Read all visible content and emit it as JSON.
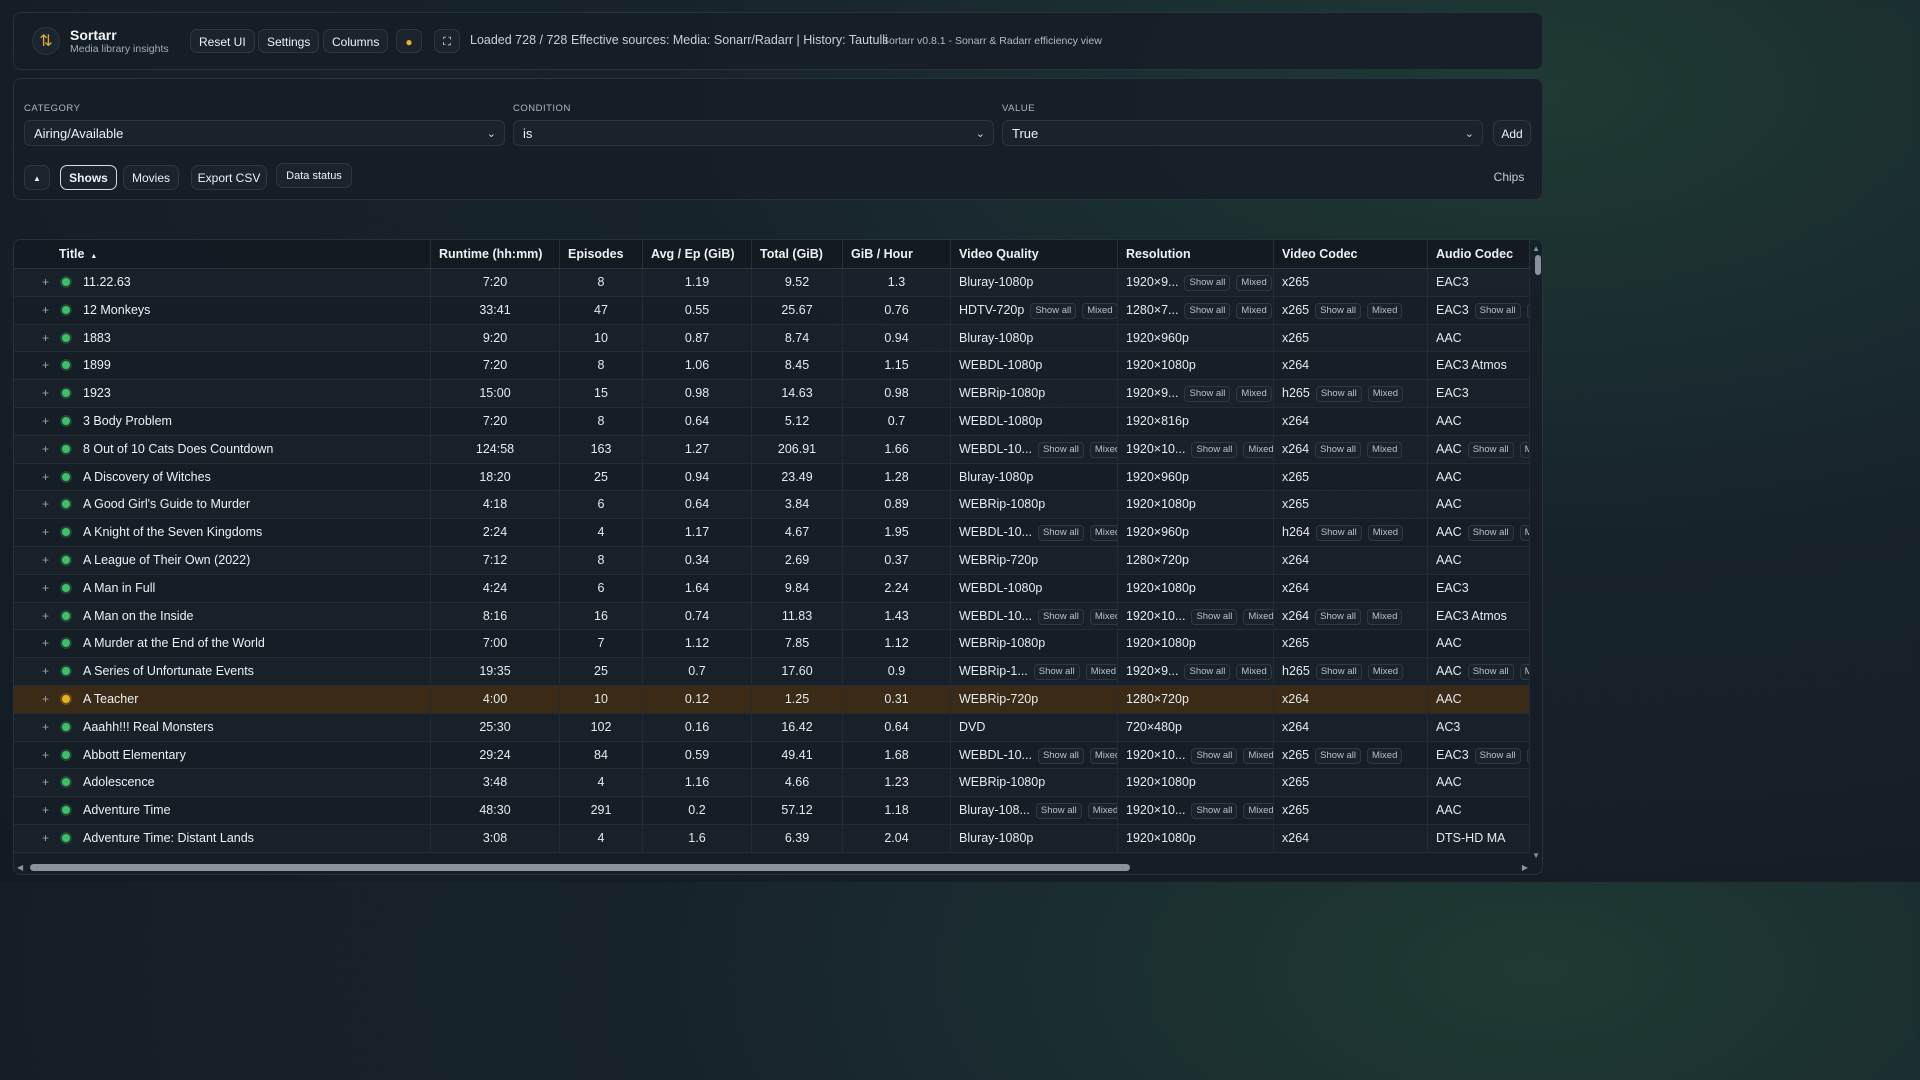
{
  "app": {
    "name": "Sortarr",
    "subtitle": "Media library insights"
  },
  "toolbar": {
    "reset": "Reset UI",
    "settings": "Settings",
    "columns": "Columns",
    "loaded": "Loaded 728 / 728",
    "sources": "Effective sources: Media: Sonarr/Radarr | History: Tautulli",
    "version": "Sortarr v0.8.1 - Sonarr & Radarr efficiency view"
  },
  "filters": {
    "category_label": "CATEGORY",
    "category_value": "Airing/Available",
    "condition_label": "CONDITION",
    "condition_value": "is",
    "value_label": "VALUE",
    "value_value": "True",
    "add": "Add",
    "collapse": "▲",
    "shows": "Shows",
    "movies": "Movies",
    "export": "Export CSV",
    "data_status": "Data status",
    "chips": "Chips"
  },
  "columns": [
    "Title",
    "Runtime (hh:mm)",
    "Episodes",
    "Avg / Ep (GiB)",
    "Total (GiB)",
    "GiB / Hour",
    "Video Quality",
    "Resolution",
    "Video Codec",
    "Audio Codec"
  ],
  "sort_indicator": "▲",
  "tag_labels": {
    "show_all": "Show all",
    "mixed": "Mixed"
  },
  "rows": [
    {
      "title": "11.22.63",
      "runtime": "7:20",
      "episodes": "8",
      "avg": "1.19",
      "total": "9.52",
      "gph": "1.3",
      "vq": "Bluray-1080p",
      "vq_tags": false,
      "res": "1920×9...",
      "res_tags": true,
      "vc": "x265",
      "vc_tags": false,
      "ac": "EAC3",
      "ac_tags": false,
      "status": "green"
    },
    {
      "title": "12 Monkeys",
      "runtime": "33:41",
      "episodes": "47",
      "avg": "0.55",
      "total": "25.67",
      "gph": "0.76",
      "vq": "HDTV-720p",
      "vq_tags": true,
      "res": "1280×7...",
      "res_tags": true,
      "vc": "x265",
      "vc_tags": true,
      "ac": "EAC3",
      "ac_tags": true,
      "status": "green"
    },
    {
      "title": "1883",
      "runtime": "9:20",
      "episodes": "10",
      "avg": "0.87",
      "total": "8.74",
      "gph": "0.94",
      "vq": "Bluray-1080p",
      "vq_tags": false,
      "res": "1920×960p",
      "res_tags": false,
      "vc": "x265",
      "vc_tags": false,
      "ac": "AAC",
      "ac_tags": false,
      "status": "green"
    },
    {
      "title": "1899",
      "runtime": "7:20",
      "episodes": "8",
      "avg": "1.06",
      "total": "8.45",
      "gph": "1.15",
      "vq": "WEBDL-1080p",
      "vq_tags": false,
      "res": "1920×1080p",
      "res_tags": false,
      "vc": "x264",
      "vc_tags": false,
      "ac": "EAC3 Atmos",
      "ac_tags": false,
      "status": "green"
    },
    {
      "title": "1923",
      "runtime": "15:00",
      "episodes": "15",
      "avg": "0.98",
      "total": "14.63",
      "gph": "0.98",
      "vq": "WEBRip-1080p",
      "vq_tags": false,
      "res": "1920×9...",
      "res_tags": true,
      "vc": "h265",
      "vc_tags": true,
      "ac": "EAC3",
      "ac_tags": false,
      "status": "green"
    },
    {
      "title": "3 Body Problem",
      "runtime": "7:20",
      "episodes": "8",
      "avg": "0.64",
      "total": "5.12",
      "gph": "0.7",
      "vq": "WEBDL-1080p",
      "vq_tags": false,
      "res": "1920×816p",
      "res_tags": false,
      "vc": "x264",
      "vc_tags": false,
      "ac": "AAC",
      "ac_tags": false,
      "status": "green"
    },
    {
      "title": "8 Out of 10 Cats Does Countdown",
      "runtime": "124:58",
      "episodes": "163",
      "avg": "1.27",
      "total": "206.91",
      "gph": "1.66",
      "vq": "WEBDL-10...",
      "vq_tags": true,
      "res": "1920×10...",
      "res_tags": true,
      "vc": "x264",
      "vc_tags": true,
      "ac": "AAC",
      "ac_tags": true,
      "status": "green"
    },
    {
      "title": "A Discovery of Witches",
      "runtime": "18:20",
      "episodes": "25",
      "avg": "0.94",
      "total": "23.49",
      "gph": "1.28",
      "vq": "Bluray-1080p",
      "vq_tags": false,
      "res": "1920×960p",
      "res_tags": false,
      "vc": "x265",
      "vc_tags": false,
      "ac": "AAC",
      "ac_tags": false,
      "status": "green"
    },
    {
      "title": "A Good Girl's Guide to Murder",
      "runtime": "4:18",
      "episodes": "6",
      "avg": "0.64",
      "total": "3.84",
      "gph": "0.89",
      "vq": "WEBRip-1080p",
      "vq_tags": false,
      "res": "1920×1080p",
      "res_tags": false,
      "vc": "x265",
      "vc_tags": false,
      "ac": "AAC",
      "ac_tags": false,
      "status": "green"
    },
    {
      "title": "A Knight of the Seven Kingdoms",
      "runtime": "2:24",
      "episodes": "4",
      "avg": "1.17",
      "total": "4.67",
      "gph": "1.95",
      "vq": "WEBDL-10...",
      "vq_tags": true,
      "res": "1920×960p",
      "res_tags": false,
      "vc": "h264",
      "vc_tags": true,
      "ac": "AAC",
      "ac_tags": true,
      "status": "green"
    },
    {
      "title": "A League of Their Own (2022)",
      "runtime": "7:12",
      "episodes": "8",
      "avg": "0.34",
      "total": "2.69",
      "gph": "0.37",
      "vq": "WEBRip-720p",
      "vq_tags": false,
      "res": "1280×720p",
      "res_tags": false,
      "vc": "x264",
      "vc_tags": false,
      "ac": "AAC",
      "ac_tags": false,
      "status": "green"
    },
    {
      "title": "A Man in Full",
      "runtime": "4:24",
      "episodes": "6",
      "avg": "1.64",
      "total": "9.84",
      "gph": "2.24",
      "vq": "WEBDL-1080p",
      "vq_tags": false,
      "res": "1920×1080p",
      "res_tags": false,
      "vc": "x264",
      "vc_tags": false,
      "ac": "EAC3",
      "ac_tags": false,
      "status": "green"
    },
    {
      "title": "A Man on the Inside",
      "runtime": "8:16",
      "episodes": "16",
      "avg": "0.74",
      "total": "11.83",
      "gph": "1.43",
      "vq": "WEBDL-10...",
      "vq_tags": true,
      "res": "1920×10...",
      "res_tags": true,
      "vc": "x264",
      "vc_tags": true,
      "ac": "EAC3 Atmos",
      "ac_tags": false,
      "status": "green"
    },
    {
      "title": "A Murder at the End of the World",
      "runtime": "7:00",
      "episodes": "7",
      "avg": "1.12",
      "total": "7.85",
      "gph": "1.12",
      "vq": "WEBRip-1080p",
      "vq_tags": false,
      "res": "1920×1080p",
      "res_tags": false,
      "vc": "x265",
      "vc_tags": false,
      "ac": "AAC",
      "ac_tags": false,
      "status": "green"
    },
    {
      "title": "A Series of Unfortunate Events",
      "runtime": "19:35",
      "episodes": "25",
      "avg": "0.7",
      "total": "17.60",
      "gph": "0.9",
      "vq": "WEBRip-1...",
      "vq_tags": true,
      "res": "1920×9...",
      "res_tags": true,
      "vc": "h265",
      "vc_tags": true,
      "ac": "AAC",
      "ac_tags": true,
      "status": "green"
    },
    {
      "title": "A Teacher",
      "runtime": "4:00",
      "episodes": "10",
      "avg": "0.12",
      "total": "1.25",
      "gph": "0.31",
      "vq": "WEBRip-720p",
      "vq_tags": false,
      "res": "1280×720p",
      "res_tags": false,
      "vc": "x264",
      "vc_tags": false,
      "ac": "AAC",
      "ac_tags": false,
      "status": "yellow"
    },
    {
      "title": "Aaahh!!! Real Monsters",
      "runtime": "25:30",
      "episodes": "102",
      "avg": "0.16",
      "total": "16.42",
      "gph": "0.64",
      "vq": "DVD",
      "vq_tags": false,
      "res": "720×480p",
      "res_tags": false,
      "vc": "x264",
      "vc_tags": false,
      "ac": "AC3",
      "ac_tags": false,
      "status": "green"
    },
    {
      "title": "Abbott Elementary",
      "runtime": "29:24",
      "episodes": "84",
      "avg": "0.59",
      "total": "49.41",
      "gph": "1.68",
      "vq": "WEBDL-10...",
      "vq_tags": true,
      "res": "1920×10...",
      "res_tags": true,
      "vc": "x265",
      "vc_tags": true,
      "ac": "EAC3",
      "ac_tags": true,
      "status": "green"
    },
    {
      "title": "Adolescence",
      "runtime": "3:48",
      "episodes": "4",
      "avg": "1.16",
      "total": "4.66",
      "gph": "1.23",
      "vq": "WEBRip-1080p",
      "vq_tags": false,
      "res": "1920×1080p",
      "res_tags": false,
      "vc": "x265",
      "vc_tags": false,
      "ac": "AAC",
      "ac_tags": false,
      "status": "green"
    },
    {
      "title": "Adventure Time",
      "runtime": "48:30",
      "episodes": "291",
      "avg": "0.2",
      "total": "57.12",
      "gph": "1.18",
      "vq": "Bluray-108...",
      "vq_tags": true,
      "res": "1920×10...",
      "res_tags": true,
      "vc": "x265",
      "vc_tags": false,
      "ac": "AAC",
      "ac_tags": false,
      "status": "green"
    },
    {
      "title": "Adventure Time: Distant Lands",
      "runtime": "3:08",
      "episodes": "4",
      "avg": "1.6",
      "total": "6.39",
      "gph": "2.04",
      "vq": "Bluray-1080p",
      "vq_tags": false,
      "res": "1920×1080p",
      "res_tags": false,
      "vc": "x264",
      "vc_tags": false,
      "ac": "DTS-HD MA",
      "ac_tags": false,
      "status": "green"
    }
  ]
}
